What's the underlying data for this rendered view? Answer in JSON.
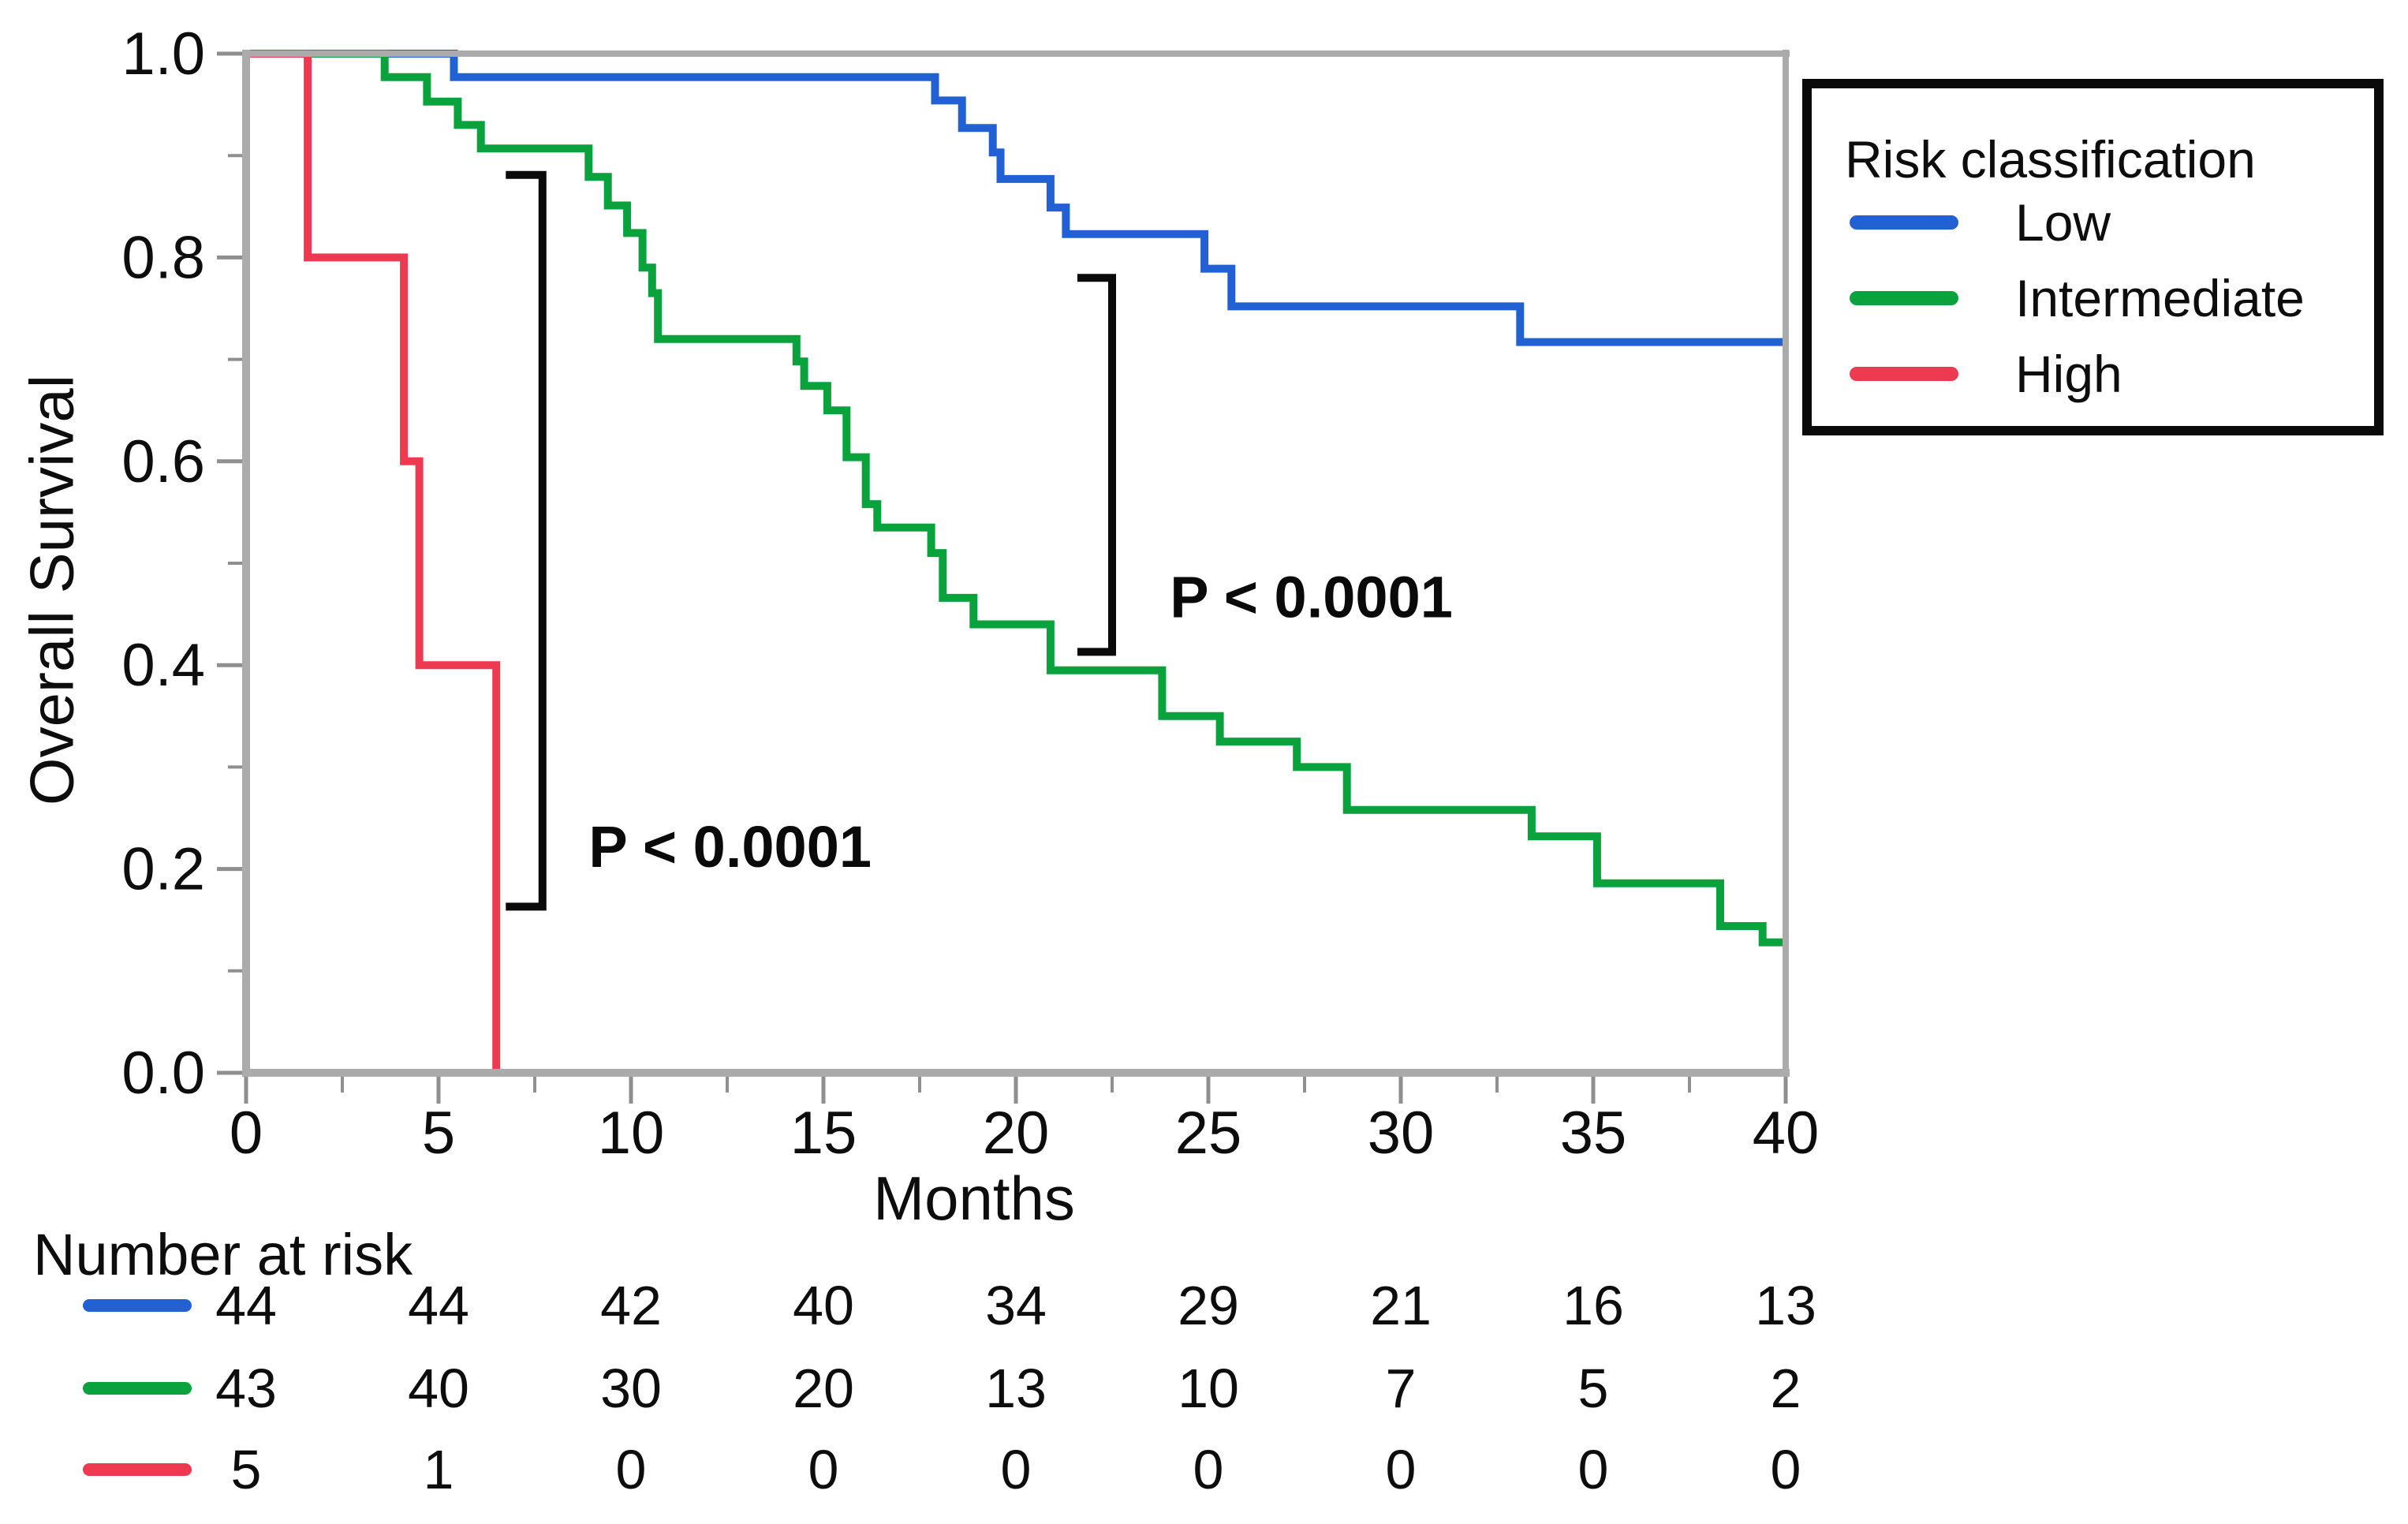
{
  "figure": {
    "background": "#ffffff"
  },
  "legend": {
    "title": "Risk classification",
    "items": [
      {
        "label": "Low",
        "color": "#2261d3"
      },
      {
        "label": "Intermediate",
        "color": "#09a23d"
      },
      {
        "label": "High",
        "color": "#ee3a51"
      }
    ]
  },
  "number_at_risk": {
    "label": "Number at risk",
    "times": [
      0,
      5,
      10,
      15,
      20,
      25,
      30,
      35,
      40
    ],
    "rows": [
      {
        "name": "Low",
        "color": "#2261d3",
        "values": [
          44,
          44,
          42,
          40,
          34,
          29,
          21,
          16,
          13
        ]
      },
      {
        "name": "Intermediate",
        "color": "#09a23d",
        "values": [
          43,
          40,
          30,
          20,
          13,
          10,
          7,
          5,
          2
        ]
      },
      {
        "name": "High",
        "color": "#ee3a51",
        "values": [
          5,
          1,
          0,
          0,
          0,
          0,
          0,
          0,
          0
        ]
      }
    ]
  },
  "chart_data": {
    "type": "line",
    "subtype": "kaplan-meier-step",
    "title": "",
    "xlabel": "Months",
    "ylabel": "Overall Survival",
    "xlim": [
      0,
      40
    ],
    "ylim": [
      0.0,
      1.0
    ],
    "grid": false,
    "legend_position": "outside-top-right",
    "xticks": [
      0,
      5,
      10,
      15,
      20,
      25,
      30,
      35,
      40
    ],
    "xtick_labels": [
      "0",
      "5",
      "10",
      "15",
      "20",
      "25",
      "30",
      "35",
      "40"
    ],
    "xticks_minor": [
      2.5,
      7.5,
      12.5,
      17.5,
      22.5,
      27.5,
      32.5,
      37.5
    ],
    "yticks": [
      0.0,
      0.2,
      0.4,
      0.6,
      0.8,
      1.0
    ],
    "ytick_labels": [
      "0.0",
      "0.2",
      "0.4",
      "0.6",
      "0.8",
      "1.0"
    ],
    "yticks_minor": [
      0.1,
      0.3,
      0.5,
      0.7,
      0.9
    ],
    "series": [
      {
        "name": "Low",
        "color": "#2261d3",
        "end_x": 40,
        "steps": [
          [
            0,
            1.0
          ],
          [
            5.4,
            0.977
          ],
          [
            17.9,
            0.954
          ],
          [
            18.6,
            0.927
          ],
          [
            19.4,
            0.903
          ],
          [
            19.6,
            0.877
          ],
          [
            20.9,
            0.849
          ],
          [
            21.3,
            0.823
          ],
          [
            24.9,
            0.789
          ],
          [
            25.6,
            0.752
          ],
          [
            33.1,
            0.717
          ]
        ]
      },
      {
        "name": "Intermediate",
        "color": "#09a23d",
        "end_x": 40,
        "steps": [
          [
            0,
            1.0
          ],
          [
            3.6,
            0.977
          ],
          [
            4.7,
            0.953
          ],
          [
            5.5,
            0.93
          ],
          [
            6.1,
            0.907
          ],
          [
            8.9,
            0.879
          ],
          [
            9.4,
            0.851
          ],
          [
            9.9,
            0.824
          ],
          [
            10.3,
            0.79
          ],
          [
            10.55,
            0.765
          ],
          [
            10.7,
            0.72
          ],
          [
            14.3,
            0.698
          ],
          [
            14.5,
            0.674
          ],
          [
            15.1,
            0.65
          ],
          [
            15.6,
            0.604
          ],
          [
            16.1,
            0.558
          ],
          [
            16.4,
            0.535
          ],
          [
            17.8,
            0.51
          ],
          [
            18.1,
            0.466
          ],
          [
            18.9,
            0.44
          ],
          [
            20.9,
            0.395
          ],
          [
            23.8,
            0.35
          ],
          [
            25.3,
            0.325
          ],
          [
            27.3,
            0.3
          ],
          [
            28.6,
            0.258
          ],
          [
            33.4,
            0.232
          ],
          [
            35.1,
            0.186
          ],
          [
            38.3,
            0.144
          ],
          [
            39.4,
            0.128
          ]
        ]
      },
      {
        "name": "High",
        "color": "#ee3a51",
        "end_x": 6.5,
        "steps": [
          [
            0,
            1.0
          ],
          [
            1.6,
            0.8
          ],
          [
            4.1,
            0.6
          ],
          [
            4.5,
            0.4
          ],
          [
            6.5,
            0.0
          ]
        ]
      }
    ],
    "annotations": [
      {
        "text": "P < 0.0001",
        "compares": [
          "Intermediate",
          "High"
        ],
        "bracket_x": 7.7,
        "bracket_y_top": 0.881,
        "bracket_y_bottom": 0.163,
        "bracket_arm_months": 0.85,
        "text_x": 8.9,
        "text_y": 0.222
      },
      {
        "text": "P < 0.0001",
        "compares": [
          "Low",
          "Intermediate"
        ],
        "bracket_x": 22.5,
        "bracket_y_top": 0.78,
        "bracket_y_bottom": 0.413,
        "bracket_arm_months": 0.8,
        "text_x": 24.0,
        "text_y": 0.467
      }
    ]
  },
  "colors": {
    "axis": "#ababab",
    "tick": "#8f8f8f",
    "text": "#0d0d0d",
    "annotation": "#0a0a0a",
    "background": "#ffffff"
  }
}
